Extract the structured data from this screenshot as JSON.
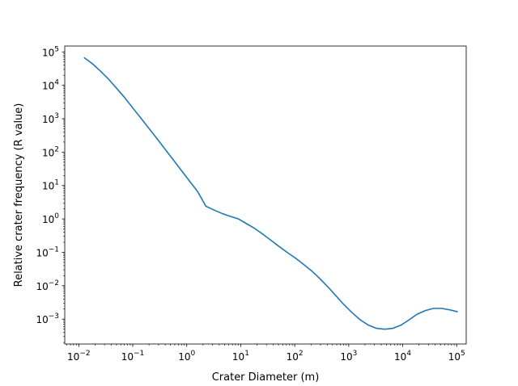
{
  "chart_data": {
    "type": "line",
    "title": "",
    "xlabel": "Crater Diameter (m)",
    "ylabel": "Relative crater frequency (R value)",
    "xscale": "log",
    "yscale": "log",
    "xlim": [
      0.0055,
      150000
    ],
    "ylim": [
      0.00018,
      150000
    ],
    "grid": false,
    "line_color": "#1f77b4",
    "x_ticks": [
      {
        "base": "10",
        "exp": "−2",
        "value": 0.01
      },
      {
        "base": "10",
        "exp": "−1",
        "value": 0.1
      },
      {
        "base": "10",
        "exp": "0",
        "value": 1
      },
      {
        "base": "10",
        "exp": "1",
        "value": 10
      },
      {
        "base": "10",
        "exp": "2",
        "value": 100
      },
      {
        "base": "10",
        "exp": "3",
        "value": 1000
      },
      {
        "base": "10",
        "exp": "4",
        "value": 10000
      },
      {
        "base": "10",
        "exp": "5",
        "value": 100000
      }
    ],
    "y_ticks": [
      {
        "base": "10",
        "exp": "−3",
        "value": 0.001
      },
      {
        "base": "10",
        "exp": "−2",
        "value": 0.01
      },
      {
        "base": "10",
        "exp": "−1",
        "value": 0.1
      },
      {
        "base": "10",
        "exp": "0",
        "value": 1
      },
      {
        "base": "10",
        "exp": "1",
        "value": 10
      },
      {
        "base": "10",
        "exp": "2",
        "value": 100
      },
      {
        "base": "10",
        "exp": "3",
        "value": 1000
      },
      {
        "base": "10",
        "exp": "4",
        "value": 10000
      },
      {
        "base": "10",
        "exp": "5",
        "value": 100000
      }
    ],
    "series": [
      {
        "x": [
          0.0125,
          0.0177,
          0.025,
          0.0354,
          0.05,
          0.0707,
          0.1,
          0.141,
          0.2,
          0.283,
          0.4,
          0.566,
          0.8,
          1.13,
          1.6,
          2.26,
          3.2,
          4.53,
          6.4,
          9.05,
          12.8,
          18.1,
          25.6,
          36.2,
          51.2,
          72.4,
          102,
          145,
          205,
          290,
          410,
          580,
          819,
          1160,
          1640,
          2320,
          3280,
          4630,
          6550,
          9270,
          13100,
          18500,
          26200,
          37100,
          52400,
          74100,
          104800
        ],
        "y": [
          68000,
          45000,
          27000,
          15500,
          8200,
          4300,
          2100,
          1050,
          510,
          250,
          120,
          58,
          28,
          13.5,
          6.5,
          2.4,
          1.85,
          1.45,
          1.2,
          1.0,
          0.72,
          0.52,
          0.35,
          0.23,
          0.15,
          0.1,
          0.068,
          0.044,
          0.028,
          0.0165,
          0.0093,
          0.005,
          0.0027,
          0.00155,
          0.00095,
          0.00066,
          0.00053,
          0.0005,
          0.00053,
          0.00066,
          0.00095,
          0.0014,
          0.0018,
          0.0021,
          0.0021,
          0.0019,
          0.00165
        ]
      }
    ]
  }
}
